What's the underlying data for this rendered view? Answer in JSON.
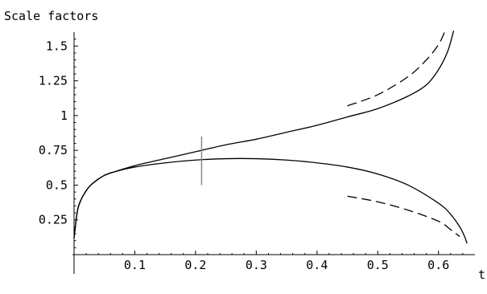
{
  "chart_data": {
    "type": "line",
    "title": "Scale factors",
    "xlabel": "t",
    "ylabel": "",
    "xlim": [
      0,
      0.66
    ],
    "ylim": [
      0,
      1.6
    ],
    "x_ticks": [
      0.1,
      0.2,
      0.3,
      0.4,
      0.5,
      0.6
    ],
    "x_tick_labels": [
      "0.1",
      "0.2",
      "0.3",
      "0.4",
      "0.5",
      "0.6"
    ],
    "y_ticks": [
      0.25,
      0.5,
      0.75,
      1,
      1.25,
      1.5
    ],
    "y_tick_labels": [
      "0.25",
      "0.5",
      "0.75",
      "1",
      "1.25",
      "1.5"
    ],
    "grid": false,
    "legend": "none",
    "series": [
      {
        "style": "solid",
        "x": [
          0.0,
          0.005,
          0.01,
          0.02,
          0.03,
          0.05,
          0.07,
          0.1,
          0.15,
          0.2,
          0.25,
          0.3,
          0.35,
          0.4,
          0.45,
          0.5,
          0.55,
          0.58,
          0.6,
          0.615,
          0.625
        ],
        "y": [
          0.12,
          0.3,
          0.38,
          0.46,
          0.51,
          0.57,
          0.6,
          0.64,
          0.69,
          0.74,
          0.79,
          0.83,
          0.88,
          0.93,
          0.99,
          1.05,
          1.14,
          1.22,
          1.33,
          1.46,
          1.61
        ]
      },
      {
        "style": "solid",
        "x": [
          0.0,
          0.005,
          0.01,
          0.02,
          0.03,
          0.05,
          0.07,
          0.1,
          0.15,
          0.2,
          0.25,
          0.3,
          0.35,
          0.4,
          0.45,
          0.5,
          0.55,
          0.6,
          0.62,
          0.635,
          0.643,
          0.647
        ],
        "y": [
          0.12,
          0.3,
          0.38,
          0.46,
          0.51,
          0.57,
          0.6,
          0.63,
          0.66,
          0.68,
          0.69,
          0.69,
          0.68,
          0.66,
          0.63,
          0.58,
          0.5,
          0.37,
          0.29,
          0.2,
          0.13,
          0.08
        ]
      },
      {
        "style": "dashed",
        "x": [
          0.0,
          0.005,
          0.01,
          0.02,
          0.03,
          0.05,
          0.07,
          0.085
        ],
        "y": [
          0.12,
          0.3,
          0.38,
          0.46,
          0.51,
          0.57,
          0.6,
          0.62
        ]
      },
      {
        "style": "dashed",
        "x": [
          0.45,
          0.5,
          0.55,
          0.58,
          0.6,
          0.61
        ],
        "y": [
          1.07,
          1.15,
          1.28,
          1.4,
          1.51,
          1.6
        ]
      },
      {
        "style": "dashed",
        "x": [
          0.45,
          0.5,
          0.55,
          0.6,
          0.62,
          0.635
        ],
        "y": [
          0.42,
          0.38,
          0.32,
          0.24,
          0.18,
          0.13
        ]
      }
    ],
    "marker": {
      "x": 0.21,
      "y_range": [
        0.5,
        0.85
      ],
      "color": "#8a8a8a"
    }
  }
}
